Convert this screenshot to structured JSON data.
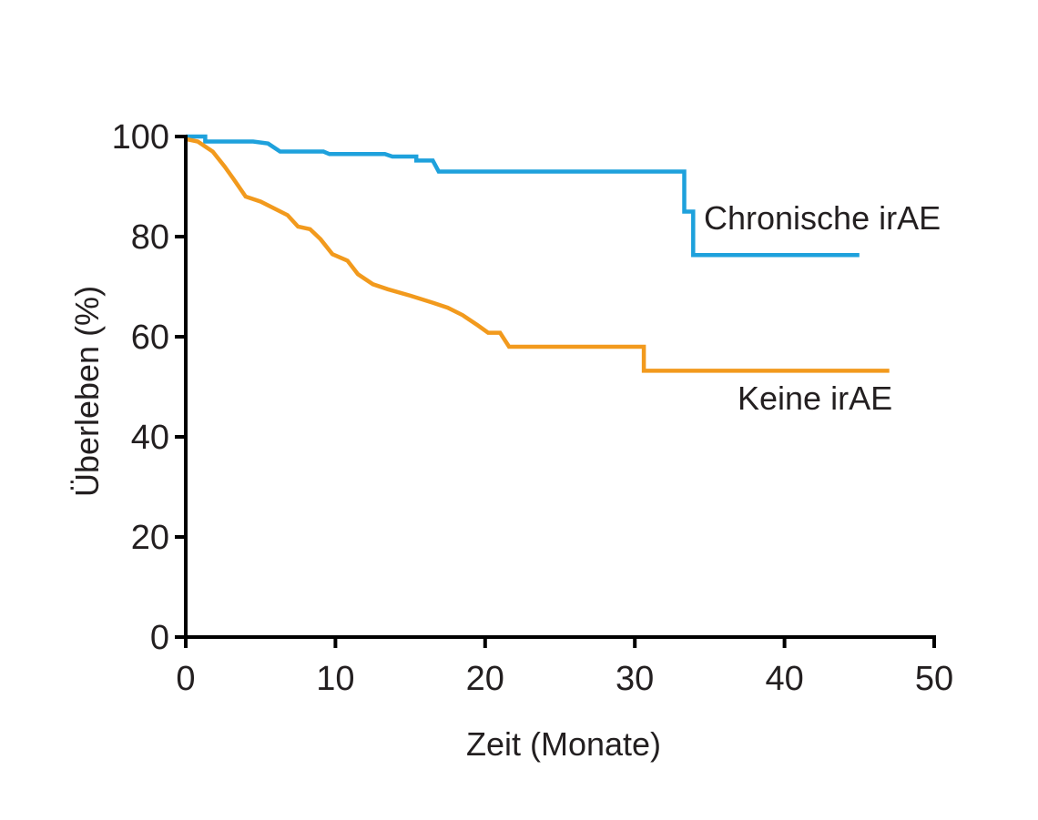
{
  "chart_data": {
    "type": "line",
    "title": "",
    "xlabel": "Zeit (Monate)",
    "ylabel": "Überleben (%)",
    "xlim": [
      0,
      50
    ],
    "ylim": [
      0,
      100
    ],
    "x_ticks": [
      "0",
      "10",
      "20",
      "30",
      "40",
      "50"
    ],
    "y_ticks": [
      "0",
      "20",
      "40",
      "60",
      "80",
      "100"
    ],
    "grid": false,
    "legend": "none",
    "series": [
      {
        "name": "Chronische irAE",
        "color": "#1ea1dc",
        "step": true,
        "points": [
          [
            0,
            100
          ],
          [
            1.3,
            100
          ],
          [
            1.3,
            99
          ],
          [
            4.5,
            99
          ],
          [
            5.5,
            98.6
          ],
          [
            6.3,
            97
          ],
          [
            9.2,
            97
          ],
          [
            9.6,
            96.5
          ],
          [
            13.3,
            96.5
          ],
          [
            13.8,
            96
          ],
          [
            15.4,
            96
          ],
          [
            15.4,
            95.2
          ],
          [
            16.5,
            95.2
          ],
          [
            16.9,
            93
          ],
          [
            33.3,
            93
          ],
          [
            33.3,
            85
          ],
          [
            33.9,
            85
          ],
          [
            33.9,
            76.3
          ],
          [
            45,
            76.3
          ]
        ]
      },
      {
        "name": "Keine irAE",
        "color": "#f29a1d",
        "step": false,
        "points": [
          [
            0,
            99.5
          ],
          [
            0.8,
            99
          ],
          [
            1.8,
            97
          ],
          [
            2.6,
            94
          ],
          [
            3.2,
            91.5
          ],
          [
            4,
            88
          ],
          [
            5,
            87
          ],
          [
            6,
            85.5
          ],
          [
            6.8,
            84.3
          ],
          [
            7.5,
            82
          ],
          [
            8.3,
            81.5
          ],
          [
            9,
            79.5
          ],
          [
            9.8,
            76.5
          ],
          [
            10.8,
            75.2
          ],
          [
            11.5,
            72.5
          ],
          [
            12.5,
            70.5
          ],
          [
            13.5,
            69.5
          ],
          [
            15,
            68.2
          ],
          [
            16.5,
            66.8
          ],
          [
            17.5,
            65.8
          ],
          [
            18.5,
            64.3
          ],
          [
            19.5,
            62.3
          ],
          [
            20.2,
            60.8
          ],
          [
            21,
            60.8
          ],
          [
            21.6,
            58
          ],
          [
            30.6,
            58
          ],
          [
            30.6,
            53.2
          ],
          [
            47,
            53.2
          ]
        ]
      }
    ],
    "annotations": [
      {
        "text": "Chronische irAE",
        "series": 0
      },
      {
        "text": "Keine irAE",
        "series": 1
      }
    ]
  }
}
